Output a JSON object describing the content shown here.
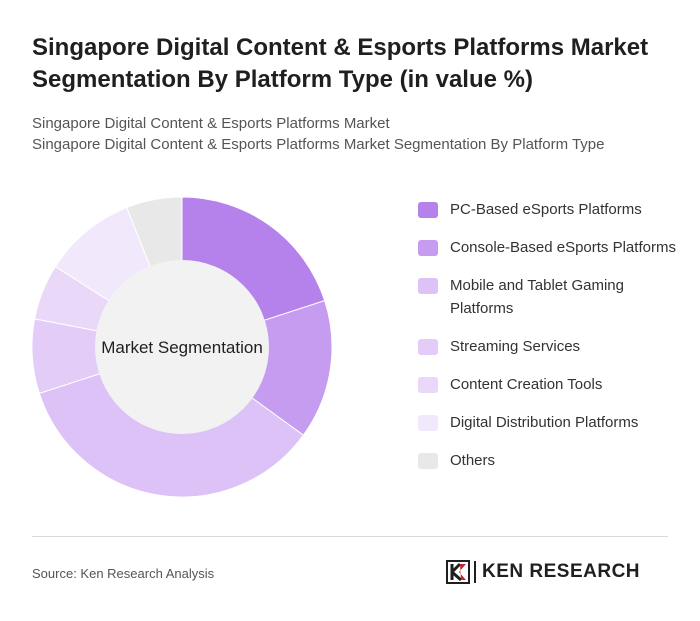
{
  "header": {
    "title": "Singapore Digital Content & Esports Platforms Market Segmentation By Platform Type (in value %)",
    "subtitle_line1": "Singapore Digital Content & Esports Platforms Market",
    "subtitle_line2": "Singapore Digital Content & Esports Platforms Market Segmentation By Platform Type"
  },
  "chart_data": {
    "type": "pie",
    "center_label": "Market Segmentation",
    "legend_position": "right",
    "categories": [
      "PC-Based eSports Platforms",
      "Console-Based eSports Platforms",
      "Mobile and Tablet Gaming Platforms",
      "Streaming Services",
      "Content Creation Tools",
      "Digital Distribution Platforms",
      "Others"
    ],
    "values": [
      20,
      15,
      35,
      8,
      6,
      10,
      6
    ],
    "colors": [
      "#b482ea",
      "#c59cef",
      "#dcc2f6",
      "#e3ccf8",
      "#ead8f9",
      "#f1e8fb",
      "#e8e8e8"
    ]
  },
  "footer": {
    "source": "Source: Ken Research Analysis",
    "logo_text": "KEN RESEARCH"
  }
}
